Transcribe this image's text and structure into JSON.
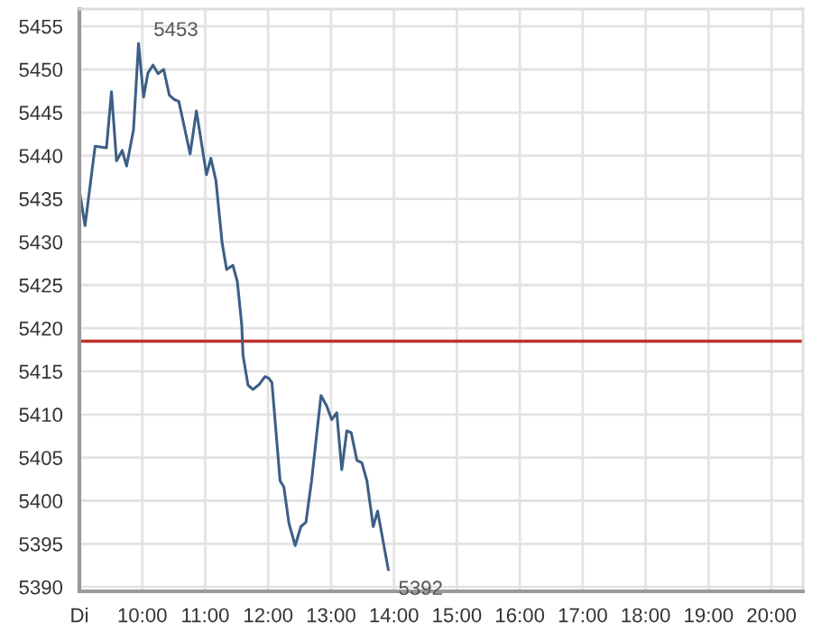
{
  "chart_data": {
    "type": "line",
    "x": [
      9.01,
      9.09,
      9.25,
      9.43,
      9.51,
      9.59,
      9.68,
      9.75,
      9.86,
      9.94,
      10.02,
      10.09,
      10.17,
      10.25,
      10.34,
      10.43,
      10.51,
      10.58,
      10.76,
      10.86,
      11.02,
      11.09,
      11.17,
      11.27,
      11.34,
      11.44,
      11.51,
      11.58,
      11.6,
      11.68,
      11.76,
      11.86,
      11.95,
      12.01,
      12.06,
      12.19,
      12.25,
      12.33,
      12.43,
      12.52,
      12.6,
      12.69,
      12.84,
      12.93,
      13.01,
      13.09,
      13.17,
      13.25,
      13.32,
      13.41,
      13.49,
      13.57,
      13.67,
      13.74,
      13.91
    ],
    "series": [
      {
        "color": "#3d5f87",
        "values": [
          5435.5,
          5431.9,
          5441.1,
          5440.9,
          5447.4,
          5439.4,
          5440.6,
          5438.8,
          5443,
          5453,
          5446.8,
          5449.6,
          5450.5,
          5449.5,
          5450,
          5447,
          5446.5,
          5446.3,
          5440.2,
          5445.2,
          5437.8,
          5439.7,
          5437.1,
          5429.8,
          5426.8,
          5427.3,
          5425.4,
          5420.4,
          5416.9,
          5413.4,
          5412.9,
          5413.5,
          5414.4,
          5414.2,
          5413.7,
          5402.3,
          5401.6,
          5397.4,
          5394.8,
          5397,
          5397.5,
          5402.3,
          5412.2,
          5411,
          5409.4,
          5410.2,
          5403.6,
          5408.1,
          5407.9,
          5404.7,
          5404.4,
          5402.3,
          5397,
          5398.8,
          5392
        ]
      }
    ],
    "xlim": [
      9,
      20.5
    ],
    "xticks": [
      {
        "value": 9,
        "label": "Di"
      },
      {
        "value": 10,
        "label": "10:00"
      },
      {
        "value": 11,
        "label": "11:00"
      },
      {
        "value": 12,
        "label": "12:00"
      },
      {
        "value": 13,
        "label": "13:00"
      },
      {
        "value": 14,
        "label": "14:00"
      },
      {
        "value": 15,
        "label": "15:00"
      },
      {
        "value": 16,
        "label": "16:00"
      },
      {
        "value": 17,
        "label": "17:00"
      },
      {
        "value": 18,
        "label": "18:00"
      },
      {
        "value": 19,
        "label": "19:00"
      },
      {
        "value": 20,
        "label": "20:00"
      }
    ],
    "ylim": [
      5389.5,
      5457
    ],
    "yticks": [
      5390,
      5395,
      5400,
      5405,
      5410,
      5415,
      5420,
      5425,
      5430,
      5435,
      5440,
      5445,
      5450,
      5455
    ],
    "ref_lines": [
      {
        "axis": "y",
        "value": 5418.5,
        "color": "#c0312b"
      }
    ],
    "annotations": [
      {
        "text": "5453",
        "x": 10.02,
        "y": 5453
      },
      {
        "text": "5392",
        "x": 13.91,
        "y": 5392
      }
    ],
    "grid": true
  }
}
